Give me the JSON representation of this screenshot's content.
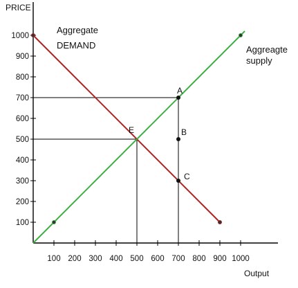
{
  "chart_data": {
    "type": "line",
    "ylabel": "PRICE",
    "xlabel": "Output",
    "x_ticks": [
      100,
      200,
      300,
      400,
      500,
      600,
      700,
      800,
      900,
      1000
    ],
    "y_ticks": [
      100,
      200,
      300,
      400,
      500,
      600,
      700,
      800,
      900,
      1000
    ],
    "xlim": [
      0,
      1100
    ],
    "ylim": [
      0,
      1100
    ],
    "series": [
      {
        "name": "Aggregate DEMAND",
        "label_lines": [
          "Aggregate",
          "DEMAND"
        ],
        "color": "#b22222",
        "x": [
          0,
          900
        ],
        "y": [
          1000,
          100
        ],
        "markers": [
          [
            0,
            1000
          ],
          [
            900,
            100
          ]
        ]
      },
      {
        "name": "Aggreagte supply",
        "label_lines": [
          "Aggreagte",
          "supply"
        ],
        "color": "#3cb043",
        "x": [
          0,
          1020
        ],
        "y": [
          0,
          1020
        ],
        "markers": [
          [
            100,
            100
          ],
          [
            1000,
            1000
          ]
        ]
      }
    ],
    "points": [
      {
        "label": "A",
        "x": 700,
        "y": 700
      },
      {
        "label": "B",
        "x": 700,
        "y": 500
      },
      {
        "label": "C",
        "x": 700,
        "y": 300
      },
      {
        "label": "E",
        "x": 500,
        "y": 500
      }
    ],
    "guides": {
      "horizontal": [
        {
          "y": 700,
          "x_from": 0,
          "x_to": 700
        },
        {
          "y": 500,
          "x_from": 0,
          "x_to": 500
        }
      ],
      "vertical": [
        {
          "x": 500,
          "y_from": 0,
          "y_to": 500
        },
        {
          "x": 700,
          "y_from": 0,
          "y_to": 700
        }
      ]
    },
    "grid": false,
    "legend": "none"
  }
}
